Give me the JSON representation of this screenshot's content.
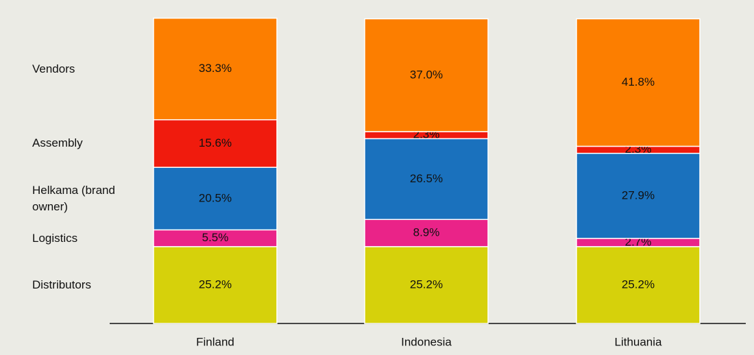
{
  "chart_data": {
    "type": "stacked_bar",
    "categories": [
      "Finland",
      "Indonesia",
      "Lithuania"
    ],
    "series": [
      {
        "name": "Distributors",
        "color": "#d6d10b",
        "values": [
          25.2,
          25.2,
          25.2
        ],
        "value_labels": [
          "25.2%",
          "25.2%",
          "25.2%"
        ]
      },
      {
        "name": "Logistics",
        "color": "#ea2388",
        "values": [
          5.5,
          8.9,
          2.7
        ],
        "value_labels": [
          "5.5%",
          "8.9%",
          "2.7%"
        ]
      },
      {
        "name": "Helkama (brand owner)",
        "color": "#1a71bd",
        "values": [
          20.5,
          26.5,
          27.9
        ],
        "value_labels": [
          "20.5%",
          "26.5%",
          "27.9%"
        ]
      },
      {
        "name": "Assembly",
        "color": "#f01b0d",
        "values": [
          15.6,
          2.3,
          2.3
        ],
        "value_labels": [
          "15.6%",
          "2.3%",
          "2.3%"
        ]
      },
      {
        "name": "Vendors",
        "color": "#fc7e00",
        "values": [
          33.3,
          37.0,
          41.8
        ],
        "value_labels": [
          "33.3%",
          "37.0%",
          "41.8%"
        ]
      }
    ]
  }
}
